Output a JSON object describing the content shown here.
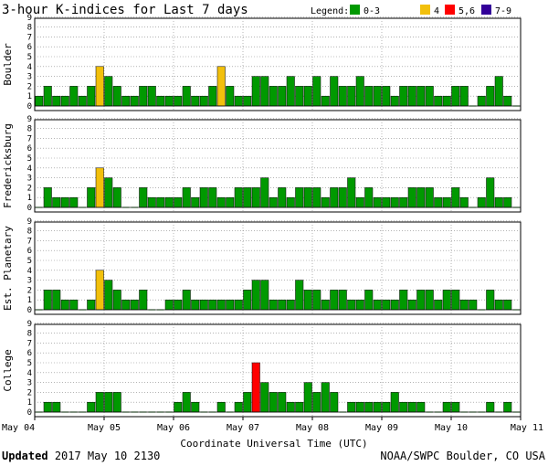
{
  "chart_data": {
    "type": "bar",
    "title": "3-hour K-indices for Last 7 days",
    "legend": {
      "label": "Legend:",
      "placement": "top-right",
      "entries": [
        {
          "label": "0-3",
          "color": "#009900"
        },
        {
          "label": "4",
          "color": "#f2c00c"
        },
        {
          "label": "5,6",
          "color": "#ff0000"
        },
        {
          "label": "7-9",
          "color": "#330099"
        }
      ]
    },
    "xlabel": "Coordinate Universal Time (UTC)",
    "x_ticks": [
      "May 04",
      "May 05",
      "May 06",
      "May 07",
      "May 08",
      "May 09",
      "May 10",
      "May 11"
    ],
    "bars_per_day": 8,
    "ylim": [
      0,
      9
    ],
    "y_ticks": [
      0,
      1,
      2,
      3,
      4,
      5,
      6,
      7,
      8,
      9
    ],
    "grid": true,
    "series": [
      {
        "name": "Boulder",
        "values": [
          1,
          2,
          1,
          1,
          2,
          1,
          2,
          4,
          3,
          2,
          1,
          1,
          2,
          2,
          1,
          1,
          1,
          2,
          1,
          1,
          2,
          4,
          2,
          1,
          1,
          3,
          3,
          2,
          2,
          3,
          2,
          2,
          3,
          1,
          3,
          2,
          2,
          3,
          2,
          2,
          2,
          1,
          2,
          2,
          2,
          2,
          1,
          1,
          2,
          2,
          0,
          1,
          2,
          3,
          1,
          0
        ]
      },
      {
        "name": "Fredericksburg",
        "values": [
          0,
          2,
          1,
          1,
          1,
          0,
          2,
          4,
          3,
          2,
          0,
          0,
          2,
          1,
          1,
          1,
          1,
          2,
          1,
          2,
          2,
          1,
          1,
          2,
          2,
          2,
          3,
          1,
          2,
          1,
          2,
          2,
          2,
          1,
          2,
          2,
          3,
          1,
          2,
          1,
          1,
          1,
          1,
          2,
          2,
          2,
          1,
          1,
          2,
          1,
          0,
          1,
          3,
          1,
          1,
          0
        ]
      },
      {
        "name": "Est. Planetary",
        "values": [
          0,
          2,
          2,
          1,
          1,
          0,
          1,
          4,
          3,
          2,
          1,
          1,
          2,
          0,
          0,
          1,
          1,
          2,
          1,
          1,
          1,
          1,
          1,
          1,
          2,
          3,
          3,
          1,
          1,
          1,
          3,
          2,
          2,
          1,
          2,
          2,
          1,
          1,
          2,
          1,
          1,
          1,
          2,
          1,
          2,
          2,
          1,
          2,
          2,
          1,
          1,
          0,
          2,
          1,
          1,
          0
        ]
      },
      {
        "name": "College",
        "values": [
          0,
          1,
          1,
          0,
          0,
          0,
          1,
          2,
          2,
          2,
          0,
          0,
          0,
          0,
          0,
          0,
          1,
          2,
          1,
          0,
          0,
          1,
          0,
          1,
          2,
          5,
          3,
          2,
          2,
          1,
          1,
          3,
          2,
          3,
          2,
          0,
          1,
          1,
          1,
          1,
          1,
          2,
          1,
          1,
          1,
          0,
          0,
          1,
          1,
          0,
          0,
          0,
          1,
          0,
          1,
          0
        ]
      }
    ]
  },
  "footer": {
    "updated_label": "Updated",
    "updated_value": "2017 May 10 2130",
    "credit": "NOAA/SWPC Boulder, CO USA"
  }
}
